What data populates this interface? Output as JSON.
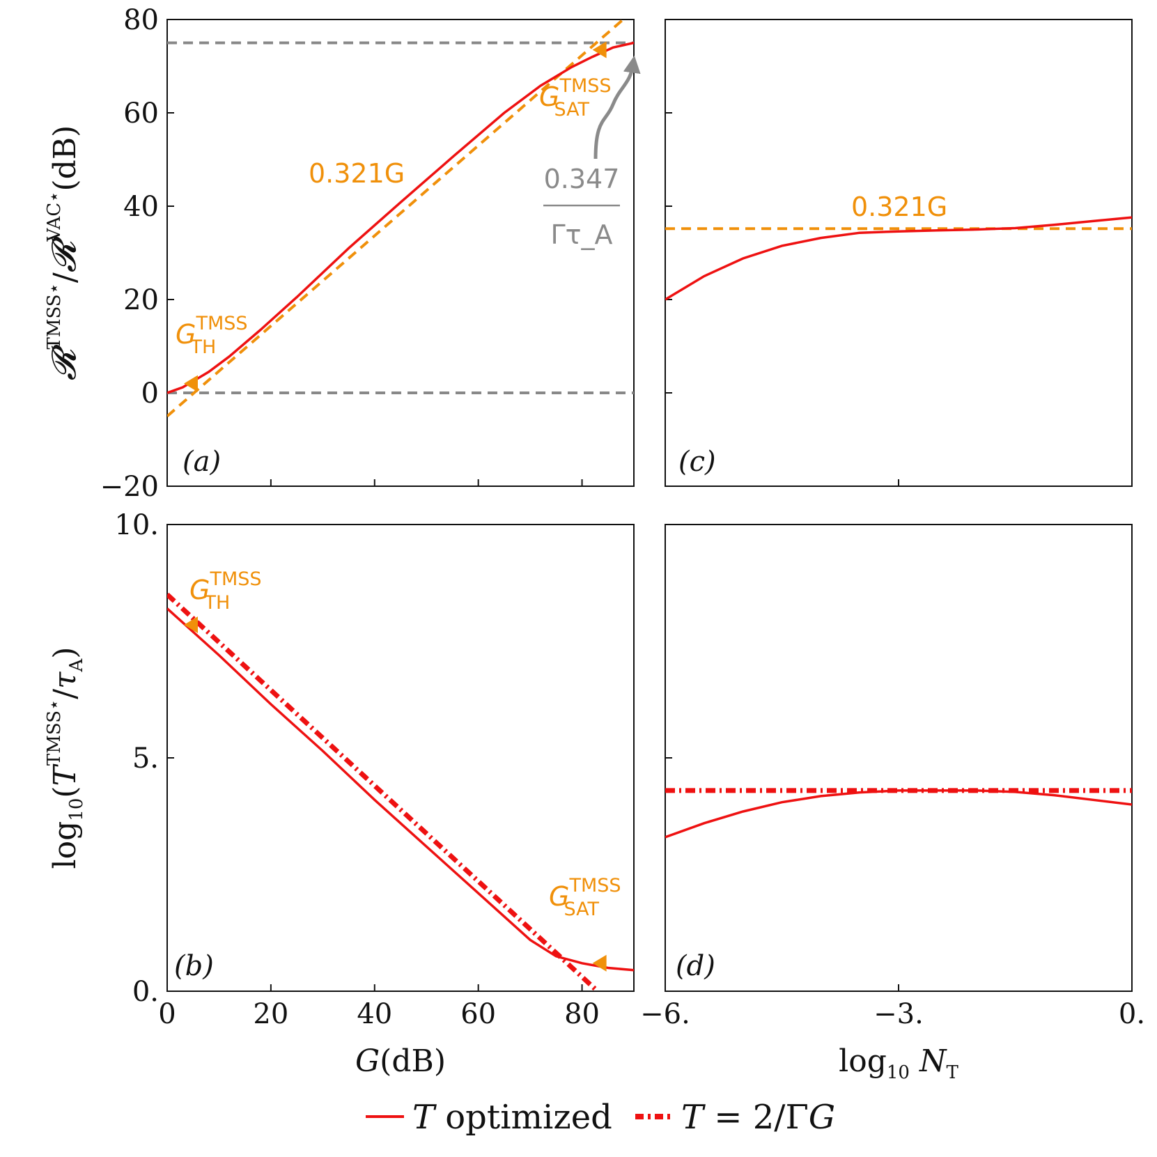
{
  "colors": {
    "model": "#ee1111",
    "fit": "#f0900a",
    "reference": "#888888",
    "annotation_gray": "#8a8a8a"
  },
  "chart_data": [
    {
      "panel": "a",
      "type": "line",
      "panel_label": "(a)",
      "xlabel": "",
      "ylabel": "R^TMSS⋆/R^VAC⋆(dB)",
      "xlim": [
        0,
        90
      ],
      "ylim": [
        -20,
        80
      ],
      "yticks": [
        "−20",
        "0",
        "20",
        "40",
        "60",
        "80"
      ],
      "series": [
        {
          "style": "solid",
          "x": [
            0,
            3,
            5,
            8,
            12,
            18,
            25,
            35,
            45,
            55,
            65,
            72,
            78,
            82,
            86,
            90
          ],
          "y": [
            0,
            1.2,
            2.5,
            4.5,
            7.8,
            13.5,
            20.5,
            31,
            40.8,
            50.5,
            60,
            65.8,
            69.8,
            72,
            74,
            75
          ]
        },
        {
          "style": "dashed-fit",
          "x": [
            0,
            90
          ],
          "y": [
            -5,
            82
          ]
        },
        {
          "style": "dashed-reference",
          "x": [
            0,
            90
          ],
          "y": [
            75,
            75
          ]
        },
        {
          "style": "dashed-reference",
          "x": [
            0,
            90
          ],
          "y": [
            0,
            0
          ]
        }
      ],
      "markers": [
        {
          "x": 4.7,
          "y": 2
        },
        {
          "x": 83.5,
          "y": 73.5
        }
      ],
      "annotations": {
        "slope": "0.321G",
        "gth_main": "G",
        "gth_sup": "TMSS",
        "gth_sub": "TH",
        "gsat_main": "G",
        "gsat_sup": "TMSS",
        "gsat_sub": "SAT",
        "sat_num": "0.347",
        "sat_den": "Γτ_A"
      }
    },
    {
      "panel": "b",
      "type": "line",
      "panel_label": "(b)",
      "xlabel": "G(dB)",
      "ylabel": "log10(T^TMSS⋆/τA)",
      "xlim": [
        0,
        90
      ],
      "ylim": [
        0,
        10
      ],
      "xticks": [
        "0",
        "20",
        "40",
        "60",
        "80"
      ],
      "yticks": [
        "0.",
        "5.",
        "10."
      ],
      "series": [
        {
          "style": "solid",
          "x": [
            0,
            10,
            20,
            30,
            40,
            50,
            60,
            65,
            70,
            75,
            80,
            85,
            90
          ],
          "y": [
            8.2,
            7.2,
            6.15,
            5.15,
            4.1,
            3.1,
            2.1,
            1.6,
            1.1,
            0.75,
            0.6,
            0.5,
            0.45
          ]
        },
        {
          "style": "dashdot",
          "x": [
            0,
            83
          ],
          "y": [
            8.5,
            0
          ]
        }
      ],
      "markers": [
        {
          "x": 4.7,
          "y": 7.85
        },
        {
          "x": 83.5,
          "y": 0.6
        }
      ],
      "annotations": {
        "gth_main": "G",
        "gth_sup": "TMSS",
        "gth_sub": "TH",
        "gsat_main": "G",
        "gsat_sup": "TMSS",
        "gsat_sub": "SAT"
      }
    },
    {
      "panel": "c",
      "type": "line",
      "panel_label": "(c)",
      "xlim": [
        -6,
        0
      ],
      "ylim": [
        -20,
        80
      ],
      "series": [
        {
          "style": "solid",
          "x": [
            -6,
            -5.5,
            -5,
            -4.5,
            -4,
            -3.5,
            -3,
            -2.5,
            -2,
            -1.5,
            -1,
            -0.5,
            0
          ],
          "y": [
            20,
            25,
            28.8,
            31.5,
            33.2,
            34.3,
            34.6,
            34.8,
            35,
            35.3,
            36,
            36.8,
            37.6
          ]
        },
        {
          "style": "dashed-fit",
          "x": [
            -6,
            0
          ],
          "y": [
            35.2,
            35.2
          ]
        }
      ],
      "annotations": {
        "slope": "0.321G"
      }
    },
    {
      "panel": "d",
      "type": "line",
      "panel_label": "(d)",
      "xlabel": "log10 NT",
      "xlim": [
        -6,
        0
      ],
      "ylim": [
        0,
        10
      ],
      "xticks": [
        "−6.",
        "−3.",
        "0."
      ],
      "series": [
        {
          "style": "solid",
          "x": [
            -6,
            -5.5,
            -5,
            -4.5,
            -4,
            -3.5,
            -3,
            -2.5,
            -2,
            -1.5,
            -1,
            -0.5,
            0
          ],
          "y": [
            3.3,
            3.6,
            3.85,
            4.05,
            4.18,
            4.26,
            4.3,
            4.3,
            4.3,
            4.27,
            4.2,
            4.1,
            4.0
          ]
        },
        {
          "style": "dashdot",
          "x": [
            -6,
            0
          ],
          "y": [
            4.3,
            4.3
          ]
        }
      ]
    }
  ],
  "legend": {
    "optimized": "T optimized",
    "fixed": "T = 2/ΓG"
  }
}
